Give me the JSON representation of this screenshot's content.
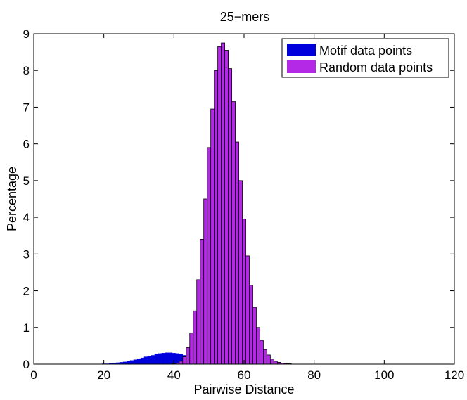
{
  "chart_data": {
    "type": "bar",
    "title": "25−mers",
    "xlabel": "Pairwise Distance",
    "ylabel": "Percentage",
    "xlim": [
      0,
      120
    ],
    "ylim": [
      0,
      9
    ],
    "xticks": [
      "0",
      "20",
      "40",
      "60",
      "80",
      "100",
      "120"
    ],
    "yticks": [
      "0",
      "1",
      "2",
      "3",
      "4",
      "5",
      "6",
      "7",
      "8",
      "9"
    ],
    "grid": false,
    "legend_position": "top-right",
    "series": [
      {
        "name": "Motif data points",
        "color": "#0000dd",
        "x": [
          20,
          21,
          22,
          23,
          24,
          25,
          26,
          27,
          28,
          29,
          30,
          31,
          32,
          33,
          34,
          35,
          36,
          37,
          38,
          39,
          40,
          41,
          42,
          43,
          44,
          45,
          46,
          47,
          48,
          49,
          50,
          51,
          52,
          53,
          54,
          55,
          56
        ],
        "values": [
          0.01,
          0.01,
          0.02,
          0.03,
          0.04,
          0.05,
          0.06,
          0.08,
          0.1,
          0.12,
          0.15,
          0.17,
          0.2,
          0.22,
          0.24,
          0.27,
          0.29,
          0.3,
          0.31,
          0.31,
          0.3,
          0.29,
          0.27,
          0.24,
          0.21,
          0.18,
          0.15,
          0.12,
          0.1,
          0.08,
          0.06,
          0.05,
          0.04,
          0.03,
          0.02,
          0.01,
          0.01
        ]
      },
      {
        "name": "Random data points",
        "color": "#b329e6",
        "x": [
          40,
          41,
          42,
          43,
          44,
          45,
          46,
          47,
          48,
          49,
          50,
          51,
          52,
          53,
          54,
          55,
          56,
          57,
          58,
          59,
          60,
          61,
          62,
          63,
          64,
          65,
          66,
          67,
          68,
          69,
          70,
          71,
          72,
          73
        ],
        "values": [
          0.01,
          0.03,
          0.08,
          0.2,
          0.45,
          0.85,
          1.45,
          2.3,
          3.4,
          4.5,
          5.9,
          6.95,
          8.0,
          8.65,
          8.75,
          8.55,
          8.05,
          7.15,
          6.05,
          5.0,
          3.95,
          2.95,
          2.15,
          1.55,
          1.0,
          0.65,
          0.4,
          0.25,
          0.14,
          0.08,
          0.05,
          0.03,
          0.02,
          0.01
        ]
      }
    ]
  }
}
